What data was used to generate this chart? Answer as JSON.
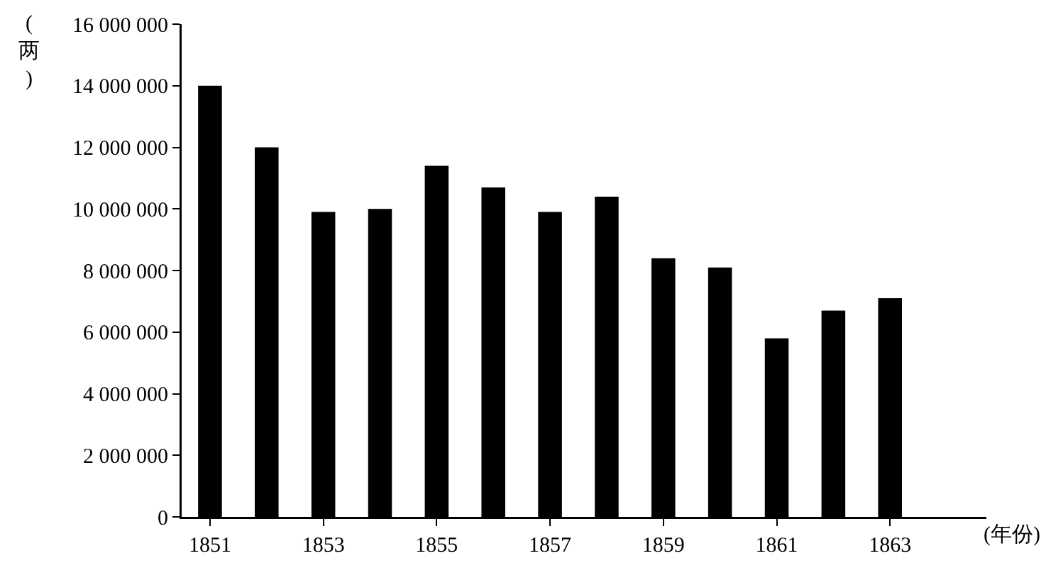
{
  "chart_data": {
    "type": "bar",
    "ylabel": "(两)",
    "xlabel": "(年份)",
    "x": [
      1851,
      1852,
      1853,
      1854,
      1855,
      1856,
      1857,
      1858,
      1859,
      1860,
      1861,
      1862,
      1863
    ],
    "values": [
      14000000,
      12000000,
      9900000,
      10000000,
      11400000,
      10700000,
      9900000,
      10400000,
      8400000,
      8100000,
      5800000,
      6700000,
      7100000
    ],
    "color": "#000000",
    "xlim": [
      1850.5,
      1864.7
    ],
    "xticks": [
      1851,
      1853,
      1855,
      1857,
      1859,
      1861,
      1863
    ],
    "ylim": [
      0,
      16000000
    ],
    "yticks": [
      0,
      {
        "value": 2000000,
        "label": "2 000 000"
      },
      {
        "value": 4000000,
        "label": "4 000 000"
      },
      {
        "value": 6000000,
        "label": "6 000 000"
      },
      {
        "value": 8000000,
        "label": "8 000 000"
      },
      {
        "value": 10000000,
        "label": "10 000 000"
      },
      {
        "value": 12000000,
        "label": "12 000 000"
      },
      {
        "value": 14000000,
        "label": "14 000 000"
      },
      {
        "value": 16000000,
        "label": "16 000 000"
      }
    ],
    "grid": false
  }
}
